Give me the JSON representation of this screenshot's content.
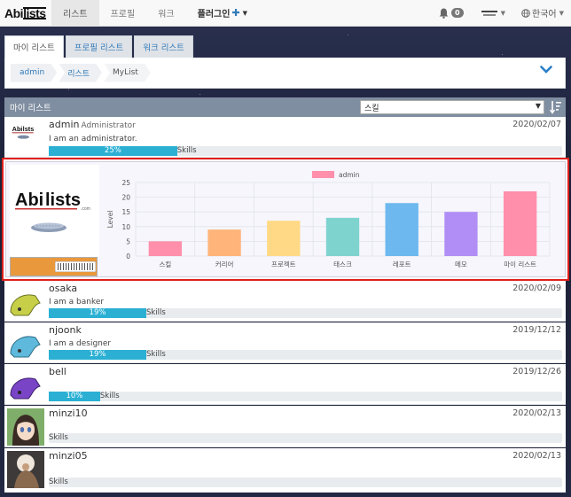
{
  "nav": {
    "logo": "Abililsts",
    "items": [
      "리스트",
      "프로필",
      "워크",
      "플러그인"
    ],
    "plugin_plus": "✚",
    "notifications_count": "0",
    "language": "한국어"
  },
  "tabs": [
    "마이 리스트",
    "프로필 리스트",
    "워크 리스트"
  ],
  "breadcrumb": [
    "admin",
    "리스트",
    "MyList"
  ],
  "list_header": {
    "title": "마이 리스트",
    "sort_value": "스킬"
  },
  "users": [
    {
      "name": "admin",
      "role": "Administrator",
      "date": "2020/02/07",
      "desc": "I am an administrator.",
      "percent": 25,
      "percent_label": "25%",
      "skills": "Skills"
    },
    {
      "name": "osaka",
      "role": "",
      "date": "2020/02/09",
      "desc": "I am a banker",
      "percent": 19,
      "percent_label": "19%",
      "skills": "Skills"
    },
    {
      "name": "njoonk",
      "role": "",
      "date": "2019/12/12",
      "desc": "I am a designer",
      "percent": 19,
      "percent_label": "19%",
      "skills": "Skills"
    },
    {
      "name": "bell",
      "role": "",
      "date": "2019/12/26",
      "desc": "",
      "percent": 10,
      "percent_label": "10%",
      "skills": "Skills"
    },
    {
      "name": "minzi10",
      "role": "",
      "date": "2020/02/13",
      "desc": "",
      "percent": 0,
      "percent_label": "",
      "skills": "Skills"
    },
    {
      "name": "minzi05",
      "role": "",
      "date": "2020/02/13",
      "desc": "",
      "percent": 0,
      "percent_label": "",
      "skills": "Skills"
    }
  ],
  "chart_data": {
    "type": "bar",
    "categories": [
      "스킬",
      "커리어",
      "프로젝트",
      "태스크",
      "레포트",
      "메모",
      "마이 리스트"
    ],
    "series": [
      {
        "name": "admin",
        "values": [
          5,
          9,
          12,
          13,
          18,
          15,
          22
        ]
      }
    ],
    "colors": [
      "#ff8fab",
      "#ffb479",
      "#ffd985",
      "#7fd3cf",
      "#6db8ee",
      "#b08ef5",
      "#ff8fab"
    ],
    "ylabel": "Level",
    "ylim": [
      0,
      25
    ],
    "yticks": [
      0,
      5,
      10,
      15,
      20,
      25
    ],
    "legend": "top"
  }
}
